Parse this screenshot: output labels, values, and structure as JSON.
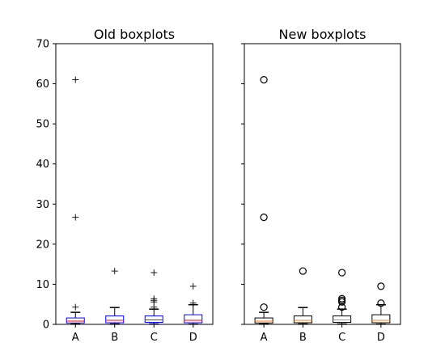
{
  "chart_data": [
    {
      "type": "box",
      "title": "Old boxplots",
      "categories": [
        "A",
        "B",
        "C",
        "D"
      ],
      "ylim": [
        0,
        70
      ],
      "yticks": [
        0,
        10,
        20,
        30,
        40,
        50,
        60,
        70
      ],
      "style": {
        "box_color": "#0000ff",
        "median_color": "#ff0000",
        "whisker_color": "#000000",
        "flier_marker": "plus",
        "box_fill": "none"
      },
      "boxes": [
        {
          "category": "A",
          "whislo": 0.1,
          "q1": 0.35,
          "med": 0.8,
          "q3": 1.6,
          "whishi": 3.0,
          "fliers": [
            4.3,
            26.7,
            61.0
          ]
        },
        {
          "category": "B",
          "whislo": 0.1,
          "q1": 0.4,
          "med": 1.0,
          "q3": 2.1,
          "whishi": 4.2,
          "fliers": [
            13.3
          ]
        },
        {
          "category": "C",
          "whislo": 0.1,
          "q1": 0.5,
          "med": 1.1,
          "q3": 2.1,
          "whishi": 3.8,
          "fliers": [
            4.3,
            5.6,
            6.0,
            6.4,
            12.9
          ]
        },
        {
          "category": "D",
          "whislo": 0.05,
          "q1": 0.4,
          "med": 1.0,
          "q3": 2.4,
          "whishi": 4.9,
          "fliers": [
            5.3,
            9.5
          ]
        }
      ]
    },
    {
      "type": "box",
      "title": "New boxplots",
      "categories": [
        "A",
        "B",
        "C",
        "D"
      ],
      "ylim": [
        0,
        70
      ],
      "yticks": [
        0,
        10,
        20,
        30,
        40,
        50,
        60,
        70
      ],
      "style": {
        "box_color": "#000000",
        "median_color": "#ff7f0e",
        "whisker_color": "#000000",
        "flier_marker": "circle",
        "box_fill": "none"
      },
      "boxes": [
        {
          "category": "A",
          "whislo": 0.1,
          "q1": 0.35,
          "med": 0.8,
          "q3": 1.6,
          "whishi": 3.0,
          "fliers": [
            4.3,
            26.7,
            61.0
          ]
        },
        {
          "category": "B",
          "whislo": 0.1,
          "q1": 0.4,
          "med": 1.0,
          "q3": 2.1,
          "whishi": 4.2,
          "fliers": [
            13.3
          ]
        },
        {
          "category": "C",
          "whislo": 0.1,
          "q1": 0.5,
          "med": 1.1,
          "q3": 2.1,
          "whishi": 3.8,
          "fliers": [
            4.3,
            5.6,
            6.0,
            6.4,
            12.9
          ]
        },
        {
          "category": "D",
          "whislo": 0.05,
          "q1": 0.4,
          "med": 1.0,
          "q3": 2.4,
          "whishi": 4.9,
          "fliers": [
            5.3,
            9.5
          ]
        }
      ]
    }
  ]
}
